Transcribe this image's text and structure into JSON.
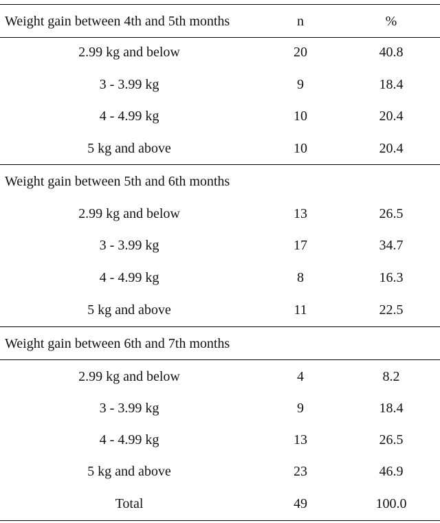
{
  "header": {
    "col1": "Weight gain between 4th and 5th months",
    "col2": "n",
    "col3": "%"
  },
  "group1": {
    "rows": [
      {
        "label": "2.99 kg and below",
        "n": "20",
        "pct": "40.8"
      },
      {
        "label": "3 - 3.99 kg",
        "n": "9",
        "pct": "18.4"
      },
      {
        "label": "4 - 4.99 kg",
        "n": "10",
        "pct": "20.4"
      },
      {
        "label": "5 kg and above",
        "n": "10",
        "pct": "20.4"
      }
    ]
  },
  "group2": {
    "title": "Weight gain between 5th and 6th months",
    "rows": [
      {
        "label": "2.99 kg and below",
        "n": "13",
        "pct": "26.5"
      },
      {
        "label": "3 - 3.99 kg",
        "n": "17",
        "pct": "34.7"
      },
      {
        "label": "4 - 4.99 kg",
        "n": "8",
        "pct": "16.3"
      },
      {
        "label": "5 kg and above",
        "n": "11",
        "pct": "22.5"
      }
    ]
  },
  "group3": {
    "title": "Weight gain between 6th and 7th months",
    "rows": [
      {
        "label": "2.99 kg and below",
        "n": "4",
        "pct": "8.2"
      },
      {
        "label": "3 - 3.99 kg",
        "n": "9",
        "pct": "18.4"
      },
      {
        "label": "4 - 4.99 kg",
        "n": "13",
        "pct": "26.5"
      },
      {
        "label": "5 kg and above",
        "n": "23",
        "pct": "46.9"
      }
    ]
  },
  "total": {
    "label": "Total",
    "n": "49",
    "pct": "100.0"
  }
}
